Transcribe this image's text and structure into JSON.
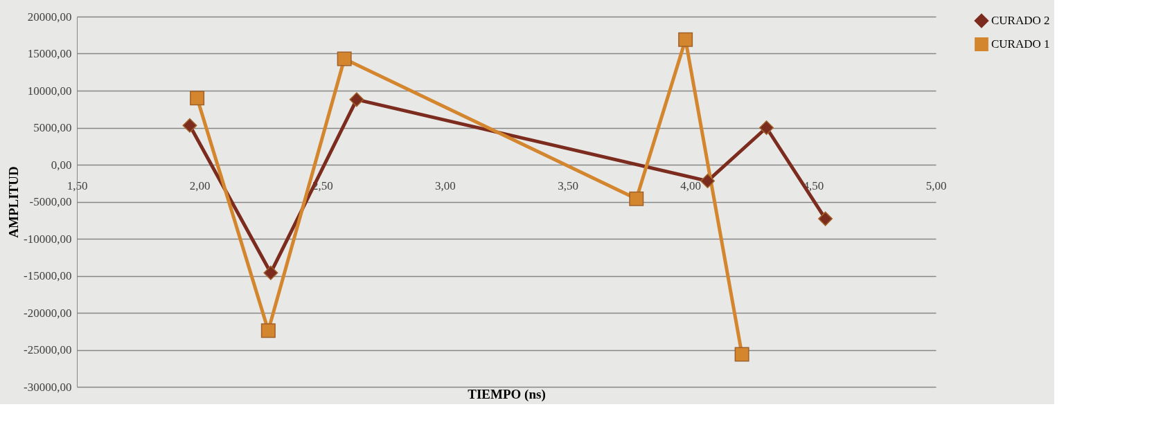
{
  "chart_data": {
    "type": "line",
    "xlabel": "TIEMPO (ns)",
    "ylabel": "AMPLITUD",
    "xlim": [
      1.5,
      5.0
    ],
    "xticks": [
      {
        "value": 1.5,
        "label": "1,50"
      },
      {
        "value": 2.0,
        "label": "2,00"
      },
      {
        "value": 2.5,
        "label": "2,50"
      },
      {
        "value": 3.0,
        "label": "3,00"
      },
      {
        "value": 3.5,
        "label": "3,50"
      },
      {
        "value": 4.0,
        "label": "4,00"
      },
      {
        "value": 4.5,
        "label": "4,50"
      },
      {
        "value": 5.0,
        "label": "5,00"
      }
    ],
    "ylim": [
      -30000,
      20000
    ],
    "yticks": [
      {
        "value": -30000,
        "label": "-30000,00"
      },
      {
        "value": -25000,
        "label": "-25000,00"
      },
      {
        "value": -20000,
        "label": "-20000,00"
      },
      {
        "value": -15000,
        "label": "-15000,00"
      },
      {
        "value": -10000,
        "label": "-10000,00"
      },
      {
        "value": -5000,
        "label": "-5000,00"
      },
      {
        "value": 0,
        "label": "0,00"
      },
      {
        "value": 5000,
        "label": "5000,00"
      },
      {
        "value": 10000,
        "label": "10000,00"
      },
      {
        "value": 15000,
        "label": "15000,00"
      },
      {
        "value": 20000,
        "label": "20000,00"
      }
    ],
    "grid": "y",
    "legend": "right",
    "line_style": "solid",
    "series": [
      {
        "name": "CURADO 2",
        "color": "#7b2c1e",
        "marker": "diamond",
        "x": [
          1.96,
          2.29,
          2.64,
          4.07,
          4.31,
          4.55
        ],
        "values": [
          5300,
          -14600,
          8800,
          -2200,
          5000,
          -7300
        ]
      },
      {
        "name": "CURADO 1",
        "color": "#d4862e",
        "marker": "square",
        "x": [
          1.99,
          2.28,
          2.59,
          3.78,
          3.98,
          4.21
        ],
        "values": [
          9000,
          -22400,
          14300,
          -4600,
          16900,
          -25600
        ]
      }
    ]
  }
}
